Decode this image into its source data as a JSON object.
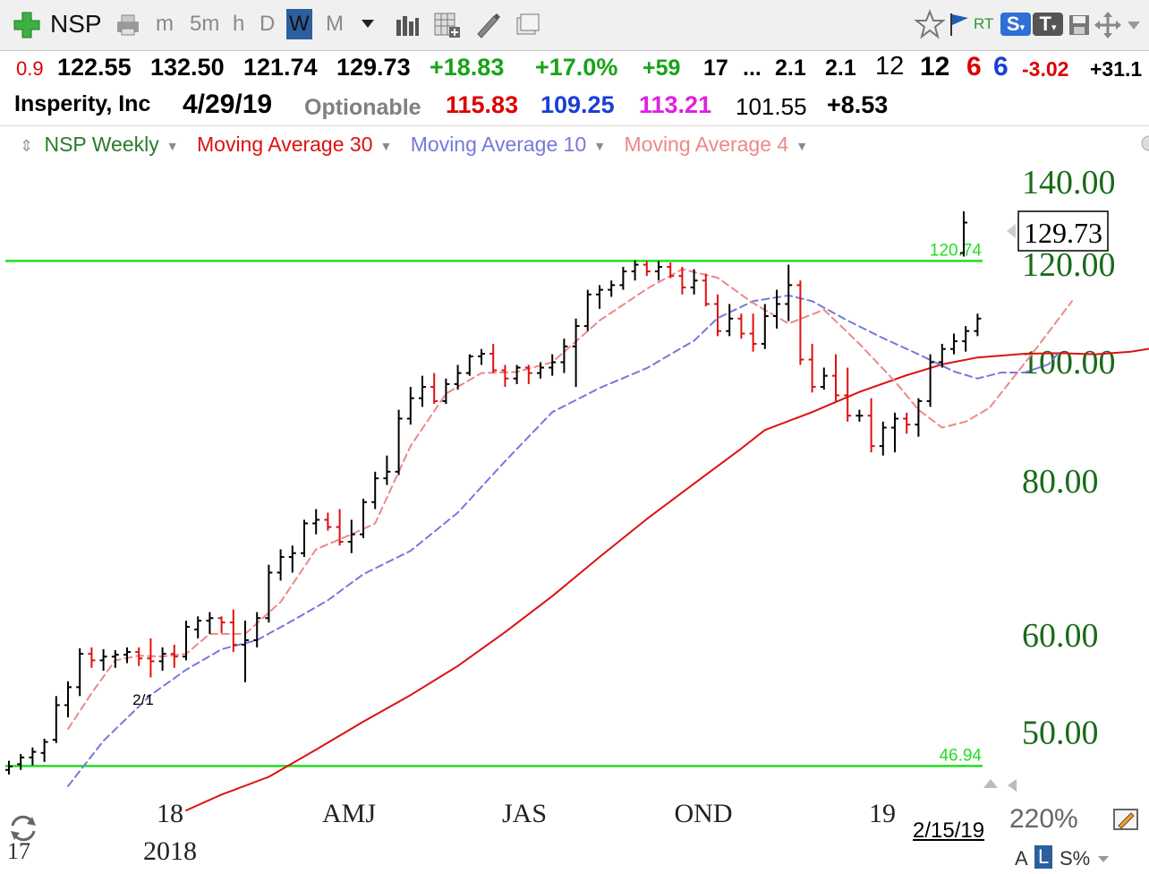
{
  "toolbar": {
    "symbol": "NSP",
    "timeframes": [
      "m",
      "5m",
      "h",
      "D",
      "W",
      "M"
    ],
    "selected_timeframe": "W",
    "rt_label": "RT",
    "s_badge": "S",
    "t_badge": "T"
  },
  "quote_row": {
    "partial_left": "0.9",
    "open": "122.55",
    "high": "132.50",
    "low": "121.74",
    "close": "129.73",
    "change": "+18.83",
    "change_pct": "+17.0%",
    "val_59": "+59",
    "val_17": "17",
    "ellipsis": "...",
    "val_21a": "2.1",
    "val_21b": "2.1",
    "val_12a": "12",
    "val_12b": "12",
    "val_6a": "6",
    "val_6b": "6",
    "val_neg": "-3.02",
    "val_pos_partial": "+31.1"
  },
  "info_row": {
    "company": "Insperity, Inc",
    "date": "4/29/19",
    "optionable": "Optionable",
    "val_red": "115.83",
    "val_blue": "109.25",
    "val_magenta": "113.21",
    "val_plain": "101.55",
    "val_delta": "+8.53"
  },
  "legend": {
    "series_label": "NSP Weekly",
    "ma30": "Moving Average 30",
    "ma10": "Moving Average 10",
    "ma4": "Moving Average 4"
  },
  "footer": {
    "zoom": "220%",
    "mode_a": "A",
    "mode_l": "L",
    "mode_s": "S%",
    "date_label": "2/15/19",
    "year_partial": "17"
  },
  "chart_data": {
    "type": "bar",
    "scale": "log",
    "ylim": [
      45.5,
      146
    ],
    "y_ticks": [
      "140.00",
      "120.00",
      "100.00",
      "80.00",
      "60.00",
      "50.00"
    ],
    "x_labels": [
      "18",
      "AMJ",
      "JAS",
      "OND",
      "19"
    ],
    "x_sublabels": [
      "2018"
    ],
    "last_price": "129.73",
    "annotation": "2/1",
    "horizontal_lines": [
      {
        "value": 120.74,
        "label": "120.74",
        "color": "#22dd22"
      },
      {
        "value": 46.94,
        "label": "46.94",
        "color": "#22dd22"
      }
    ],
    "ohlc": [
      [
        46.6,
        47.4,
        46.2,
        46.9
      ],
      [
        47.1,
        48.0,
        46.6,
        47.7
      ],
      [
        47.7,
        48.6,
        47.0,
        48.2
      ],
      [
        48.1,
        49.4,
        47.3,
        49.1
      ],
      [
        49.3,
        53.5,
        49.0,
        52.6
      ],
      [
        52.6,
        55.0,
        51.4,
        54.4
      ],
      [
        54.4,
        58.5,
        53.5,
        57.9
      ],
      [
        57.9,
        58.6,
        56.4,
        57.2
      ],
      [
        57.2,
        58.4,
        56.1,
        57.6
      ],
      [
        57.6,
        58.3,
        56.4,
        57.8
      ],
      [
        57.8,
        58.6,
        56.9,
        58.1
      ],
      [
        58.1,
        58.6,
        56.6,
        57.4
      ],
      [
        57.4,
        59.6,
        55.4,
        57.1
      ],
      [
        57.1,
        58.6,
        56.1,
        57.9
      ],
      [
        57.9,
        58.9,
        56.4,
        57.6
      ],
      [
        57.6,
        61.6,
        57.2,
        60.9
      ],
      [
        60.6,
        62.1,
        59.6,
        61.6
      ],
      [
        61.6,
        62.6,
        60.1,
        61.9
      ],
      [
        61.9,
        62.1,
        60.2,
        61.4
      ],
      [
        61.4,
        62.9,
        58.1,
        58.9
      ],
      [
        58.9,
        61.6,
        54.9,
        59.4
      ],
      [
        59.4,
        62.6,
        58.6,
        61.9
      ],
      [
        61.9,
        68.4,
        61.4,
        67.4
      ],
      [
        67.4,
        70.4,
        66.4,
        69.4
      ],
      [
        69.4,
        70.9,
        67.4,
        69.9
      ],
      [
        69.9,
        74.4,
        69.4,
        73.9
      ],
      [
        73.9,
        75.9,
        72.4,
        74.4
      ],
      [
        74.4,
        75.4,
        72.9,
        73.4
      ],
      [
        73.4,
        75.9,
        70.9,
        71.4
      ],
      [
        71.4,
        74.4,
        69.9,
        72.4
      ],
      [
        72.4,
        77.4,
        71.9,
        76.9
      ],
      [
        76.9,
        81.4,
        75.9,
        80.4
      ],
      [
        80.4,
        83.9,
        79.4,
        81.4
      ],
      [
        81.4,
        91.4,
        80.9,
        89.9
      ],
      [
        89.9,
        95.4,
        88.9,
        93.4
      ],
      [
        93.4,
        97.4,
        91.9,
        95.4
      ],
      [
        95.4,
        97.9,
        92.4,
        92.9
      ],
      [
        92.9,
        96.9,
        92.4,
        95.9
      ],
      [
        95.9,
        99.4,
        94.9,
        97.9
      ],
      [
        97.9,
        101.4,
        97.4,
        101.0
      ],
      [
        101.0,
        102.4,
        99.4,
        101.5
      ],
      [
        101.5,
        103.4,
        97.9,
        98.4
      ],
      [
        98.4,
        99.4,
        95.4,
        96.9
      ],
      [
        96.9,
        99.4,
        95.9,
        98.9
      ],
      [
        98.9,
        99.4,
        95.9,
        97.9
      ],
      [
        97.9,
        99.9,
        96.9,
        98.9
      ],
      [
        98.9,
        101.4,
        97.4,
        99.9
      ],
      [
        99.9,
        104.4,
        97.9,
        102.9
      ],
      [
        102.9,
        108.4,
        95.4,
        106.9
      ],
      [
        106.9,
        114.4,
        105.9,
        113.4
      ],
      [
        113.4,
        115.4,
        110.4,
        114.4
      ],
      [
        114.4,
        116.4,
        112.9,
        115.4
      ],
      [
        115.4,
        119.4,
        114.4,
        118.4
      ],
      [
        118.4,
        120.9,
        116.4,
        119.9
      ],
      [
        119.9,
        120.7,
        117.4,
        118.4
      ],
      [
        118.4,
        120.7,
        116.4,
        119.4
      ],
      [
        119.4,
        120.4,
        116.9,
        117.4
      ],
      [
        117.4,
        119.4,
        113.4,
        114.9
      ],
      [
        114.9,
        118.9,
        113.4,
        116.4
      ],
      [
        116.4,
        117.9,
        110.9,
        111.4
      ],
      [
        111.4,
        113.4,
        104.9,
        105.9
      ],
      [
        105.9,
        111.4,
        104.9,
        108.4
      ],
      [
        108.4,
        109.4,
        104.4,
        105.4
      ],
      [
        105.4,
        109.4,
        101.9,
        103.4
      ],
      [
        103.4,
        111.4,
        102.4,
        108.9
      ],
      [
        108.9,
        114.4,
        106.4,
        111.4
      ],
      [
        111.4,
        119.9,
        107.9,
        115.4
      ],
      [
        115.4,
        116.4,
        99.4,
        100.4
      ],
      [
        100.4,
        103.4,
        94.4,
        95.4
      ],
      [
        95.4,
        98.9,
        94.9,
        97.4
      ],
      [
        97.4,
        101.4,
        92.9,
        93.9
      ],
      [
        93.9,
        98.9,
        89.4,
        90.4
      ],
      [
        90.4,
        91.4,
        89.4,
        90.4
      ],
      [
        90.4,
        93.4,
        84.4,
        85.4
      ],
      [
        85.4,
        89.4,
        83.9,
        88.4
      ],
      [
        88.4,
        90.9,
        84.4,
        89.9
      ],
      [
        89.9,
        90.9,
        87.4,
        88.9
      ],
      [
        88.9,
        93.4,
        86.9,
        92.9
      ],
      [
        92.9,
        101.4,
        91.9,
        99.9
      ],
      [
        99.9,
        103.4,
        98.9,
        102.4
      ],
      [
        102.4,
        105.4,
        101.4,
        103.9
      ],
      [
        103.9,
        106.9,
        101.9,
        105.9
      ],
      [
        105.9,
        109.4,
        104.9,
        108.4
      ],
      [
        122.55,
        132.5,
        121.74,
        129.73
      ]
    ],
    "series": [
      {
        "name": "Moving Average 30",
        "color": "#dd1111",
        "dash": false,
        "points": [
          [
            15,
            43.2
          ],
          [
            18,
            44.5
          ],
          [
            22,
            46.0
          ],
          [
            26,
            48.4
          ],
          [
            30,
            51.0
          ],
          [
            34,
            53.6
          ],
          [
            38,
            56.6
          ],
          [
            42,
            60.3
          ],
          [
            46,
            64.5
          ],
          [
            50,
            69.4
          ],
          [
            54,
            74.5
          ],
          [
            58,
            79.6
          ],
          [
            62,
            85.0
          ],
          [
            64,
            88.0
          ],
          [
            68,
            91.0
          ],
          [
            72,
            94.5
          ],
          [
            76,
            97.5
          ],
          [
            79,
            99.5
          ],
          [
            82,
            100.8
          ],
          [
            86,
            101.5
          ],
          [
            89,
            101.6
          ],
          [
            92,
            101.4
          ],
          [
            95,
            101.9
          ],
          [
            98,
            103.0
          ]
        ]
      },
      {
        "name": "Moving Average 10",
        "color": "#7777dd",
        "dash": true,
        "points": [
          [
            5,
            45.2
          ],
          [
            8,
            49.2
          ],
          [
            12,
            53.6
          ],
          [
            15,
            56.2
          ],
          [
            18,
            58.4
          ],
          [
            21,
            59.4
          ],
          [
            24,
            61.6
          ],
          [
            27,
            64.0
          ],
          [
            30,
            67.2
          ],
          [
            34,
            70.2
          ],
          [
            38,
            75.4
          ],
          [
            42,
            83.0
          ],
          [
            46,
            91.0
          ],
          [
            50,
            95.2
          ],
          [
            54,
            98.8
          ],
          [
            58,
            104.0
          ],
          [
            60,
            108.5
          ],
          [
            63,
            112.0
          ],
          [
            66,
            113.2
          ],
          [
            68,
            112.0
          ],
          [
            71,
            108.0
          ],
          [
            74,
            104.5
          ],
          [
            77,
            101.4
          ],
          [
            80,
            98.2
          ],
          [
            82,
            96.9
          ],
          [
            84,
            98.0
          ],
          [
            86,
            98.0
          ],
          [
            88,
            99.5
          ],
          [
            89,
            102.0
          ]
        ]
      },
      {
        "name": "Moving Average 4",
        "color": "#ee8888",
        "dash": true,
        "points": [
          [
            5,
            50.3
          ],
          [
            7,
            53.8
          ],
          [
            9,
            57.2
          ],
          [
            11,
            57.7
          ],
          [
            13,
            57.6
          ],
          [
            15,
            57.9
          ],
          [
            17,
            60.1
          ],
          [
            20,
            60.1
          ],
          [
            23,
            63.8
          ],
          [
            26,
            70.4
          ],
          [
            29,
            72.4
          ],
          [
            31,
            73.9
          ],
          [
            34,
            85.4
          ],
          [
            37,
            94.2
          ],
          [
            40,
            97.9
          ],
          [
            43,
            98.1
          ],
          [
            46,
            99.9
          ],
          [
            50,
            108.0
          ],
          [
            54,
            114.6
          ],
          [
            57,
            118.9
          ],
          [
            60,
            117.0
          ],
          [
            63,
            111.6
          ],
          [
            66,
            107.4
          ],
          [
            69,
            110.2
          ],
          [
            72,
            103.4
          ],
          [
            75,
            96.4
          ],
          [
            77,
            91.4
          ],
          [
            79,
            88.4
          ],
          [
            81,
            89.4
          ],
          [
            83,
            91.7
          ],
          [
            85,
            97.0
          ],
          [
            87,
            102.6
          ],
          [
            89,
            108.8
          ],
          [
            90,
            112.0
          ]
        ]
      }
    ]
  }
}
